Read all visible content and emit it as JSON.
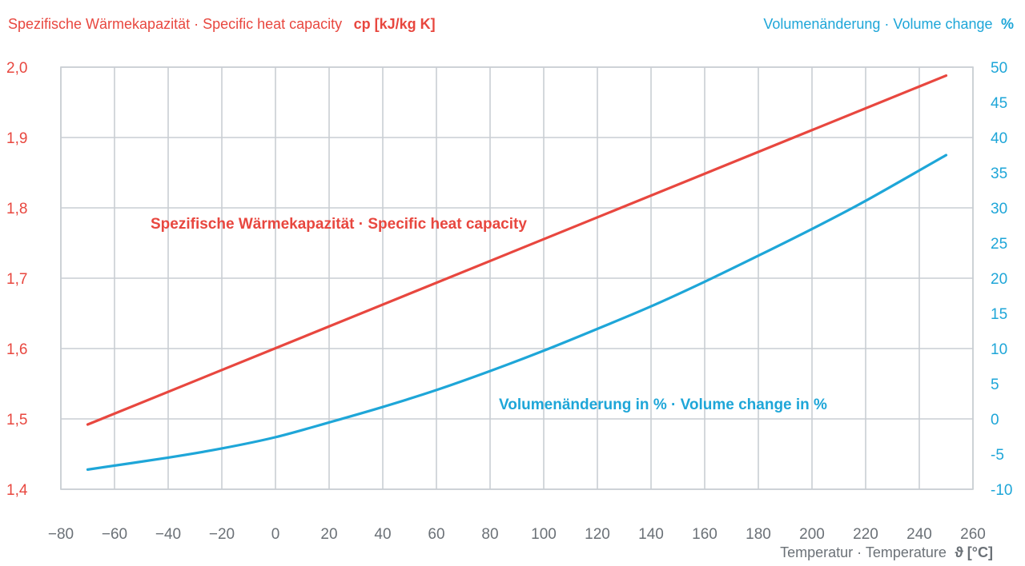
{
  "chart_data": {
    "type": "line",
    "left_axis": {
      "title": "Spezifische Wärmekapazität · Specific heat capacity",
      "unit": "cp [kJ/kg K]",
      "ylim": [
        1.4,
        2.0
      ],
      "tick_labels": [
        "1,4",
        "1,5",
        "1,6",
        "1,7",
        "1,8",
        "1,9",
        "2,0"
      ]
    },
    "right_axis": {
      "title": "Volumenänderung · Volume change",
      "unit": "%",
      "ylim": [
        -10,
        50
      ],
      "tick_labels": [
        "-10",
        "-5",
        "0",
        "5",
        "10",
        "15",
        "20",
        "25",
        "30",
        "35",
        "40",
        "45",
        "50"
      ]
    },
    "x_axis": {
      "label": "Temperatur · Temperature",
      "unit": "ϑ [°C]",
      "xlim": [
        -80,
        260
      ],
      "tick_values": [
        -80,
        -60,
        -40,
        -20,
        0,
        20,
        40,
        60,
        80,
        100,
        120,
        140,
        160,
        180,
        200,
        220,
        240,
        260
      ],
      "tick_labels": [
        "−80",
        "−60",
        "−40",
        "−20",
        "0",
        "20",
        "40",
        "60",
        "80",
        "100",
        "120",
        "140",
        "160",
        "180",
        "200",
        "220",
        "240",
        "260"
      ]
    },
    "grid": true,
    "colors": {
      "heat_capacity": "#e8473f",
      "volume_change": "#1ea6d8",
      "grid": "#c9ced3"
    },
    "series": [
      {
        "name": "Spezifische Wärmekapazität · Specific heat capacity",
        "axis": "left",
        "x": [
          -70,
          250
        ],
        "y": [
          1.492,
          1.988
        ]
      },
      {
        "name": "Volumenänderung in % · Volume change in %",
        "axis": "right",
        "x": [
          -70,
          -40,
          -20,
          0,
          20,
          40,
          60,
          80,
          100,
          120,
          140,
          160,
          180,
          200,
          220,
          250
        ],
        "y": [
          -7.2,
          -5.5,
          -4.2,
          -2.6,
          -0.5,
          1.7,
          4.1,
          6.8,
          9.7,
          12.8,
          16.0,
          19.5,
          23.2,
          27.0,
          31.0,
          37.5
        ]
      }
    ]
  }
}
